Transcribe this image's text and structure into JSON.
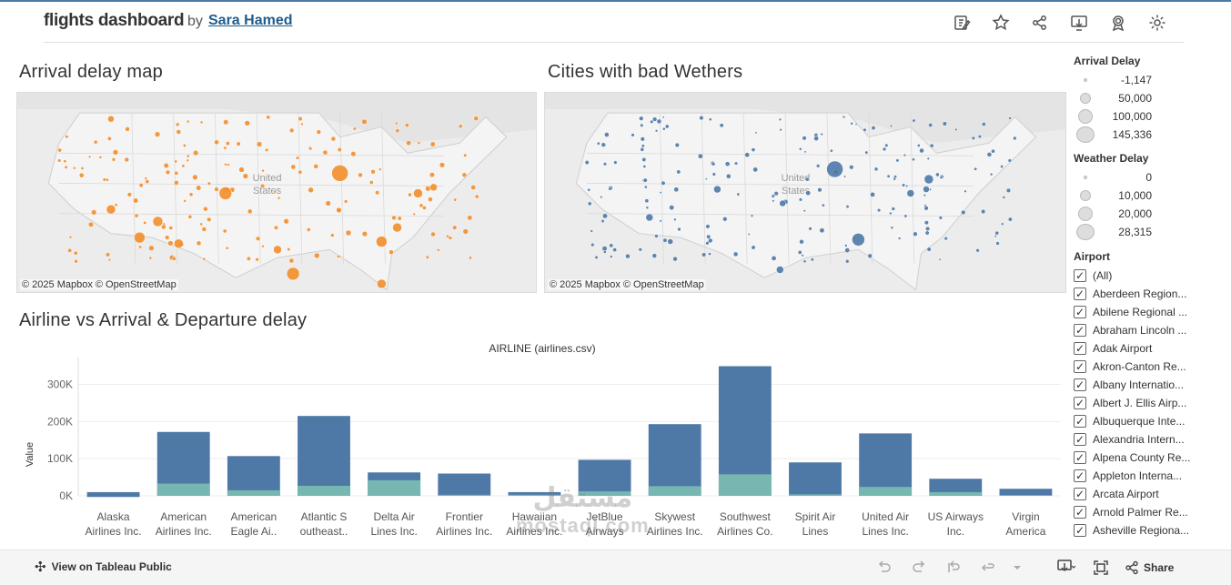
{
  "header": {
    "title": "flights dashboard",
    "by": "by",
    "author": "Sara Hamed"
  },
  "toolbar_icons": [
    "edit-icon",
    "star-icon",
    "share-icon",
    "download-icon",
    "badge-icon",
    "gear-icon"
  ],
  "maps": {
    "arrival": {
      "title": "Arrival delay map",
      "label": "United\nStates",
      "attribution": "© 2025 Mapbox  © OpenStreetMap",
      "color": "#f28e2b"
    },
    "weather": {
      "title": "Cities with bad Wethers",
      "label": "United\nStates",
      "attribution": "© 2025 Mapbox  © OpenStreetMap",
      "color": "#4e79a7"
    }
  },
  "legend_arrival": {
    "title": "Arrival Delay",
    "items": [
      "-1,147",
      "50,000",
      "100,000",
      "145,336"
    ]
  },
  "legend_weather": {
    "title": "Weather Delay",
    "items": [
      "0",
      "10,000",
      "20,000",
      "28,315"
    ]
  },
  "airport_filter": {
    "title": "Airport",
    "items": [
      "(All)",
      "Aberdeen Region...",
      "Abilene Regional ...",
      "Abraham Lincoln ...",
      "Adak Airport",
      "Akron-Canton Re...",
      "Albany Internatio...",
      "Albert J. Ellis Airp...",
      "Albuquerque Inte...",
      "Alexandria Intern...",
      "Alpena County Re...",
      "Appleton Interna...",
      "Arcata Airport",
      "Arnold Palmer Re...",
      "Asheville Regiona..."
    ]
  },
  "bar_section": {
    "title": "Airline vs Arrival & Departure delay"
  },
  "chart_data": {
    "type": "bar",
    "title": "AIRLINE (airlines.csv)",
    "ylabel": "Value",
    "ylim": [
      0,
      360000
    ],
    "yticks": [
      "0K",
      "100K",
      "200K",
      "300K"
    ],
    "categories": [
      [
        "Alaska",
        "Airlines Inc."
      ],
      [
        "American",
        "Airlines Inc."
      ],
      [
        "American",
        "Eagle Ai.."
      ],
      [
        "Atlantic S",
        "outheast.."
      ],
      [
        "Delta Air",
        "Lines Inc."
      ],
      [
        "Frontier",
        "Airlines Inc."
      ],
      [
        "Hawaiian",
        "Airlines Inc."
      ],
      [
        "JetBlue",
        "Airways"
      ],
      [
        "Skywest",
        "Airlines Inc."
      ],
      [
        "Southwest",
        "Airlines Co."
      ],
      [
        "Spirit Air",
        "Lines"
      ],
      [
        "United Air",
        "Lines Inc."
      ],
      [
        "US Airways",
        "Inc."
      ],
      [
        "Virgin",
        "America"
      ]
    ],
    "series": [
      {
        "color": "#4e79a7",
        "values": [
          10000,
          172000,
          107000,
          215000,
          63000,
          60000,
          10000,
          97000,
          193000,
          349000,
          90000,
          168000,
          46000,
          19000
        ]
      },
      {
        "color": "#76b7b2",
        "values": [
          -3000,
          33000,
          15000,
          27000,
          42000,
          3000,
          3000,
          12000,
          26000,
          58000,
          4000,
          24000,
          10000,
          2000
        ]
      }
    ]
  },
  "bottombar": {
    "view_label": "View on Tableau Public",
    "share_label": "Share"
  },
  "watermark": {
    "arabic": "مستقل",
    "latin": "mostaql.com"
  }
}
